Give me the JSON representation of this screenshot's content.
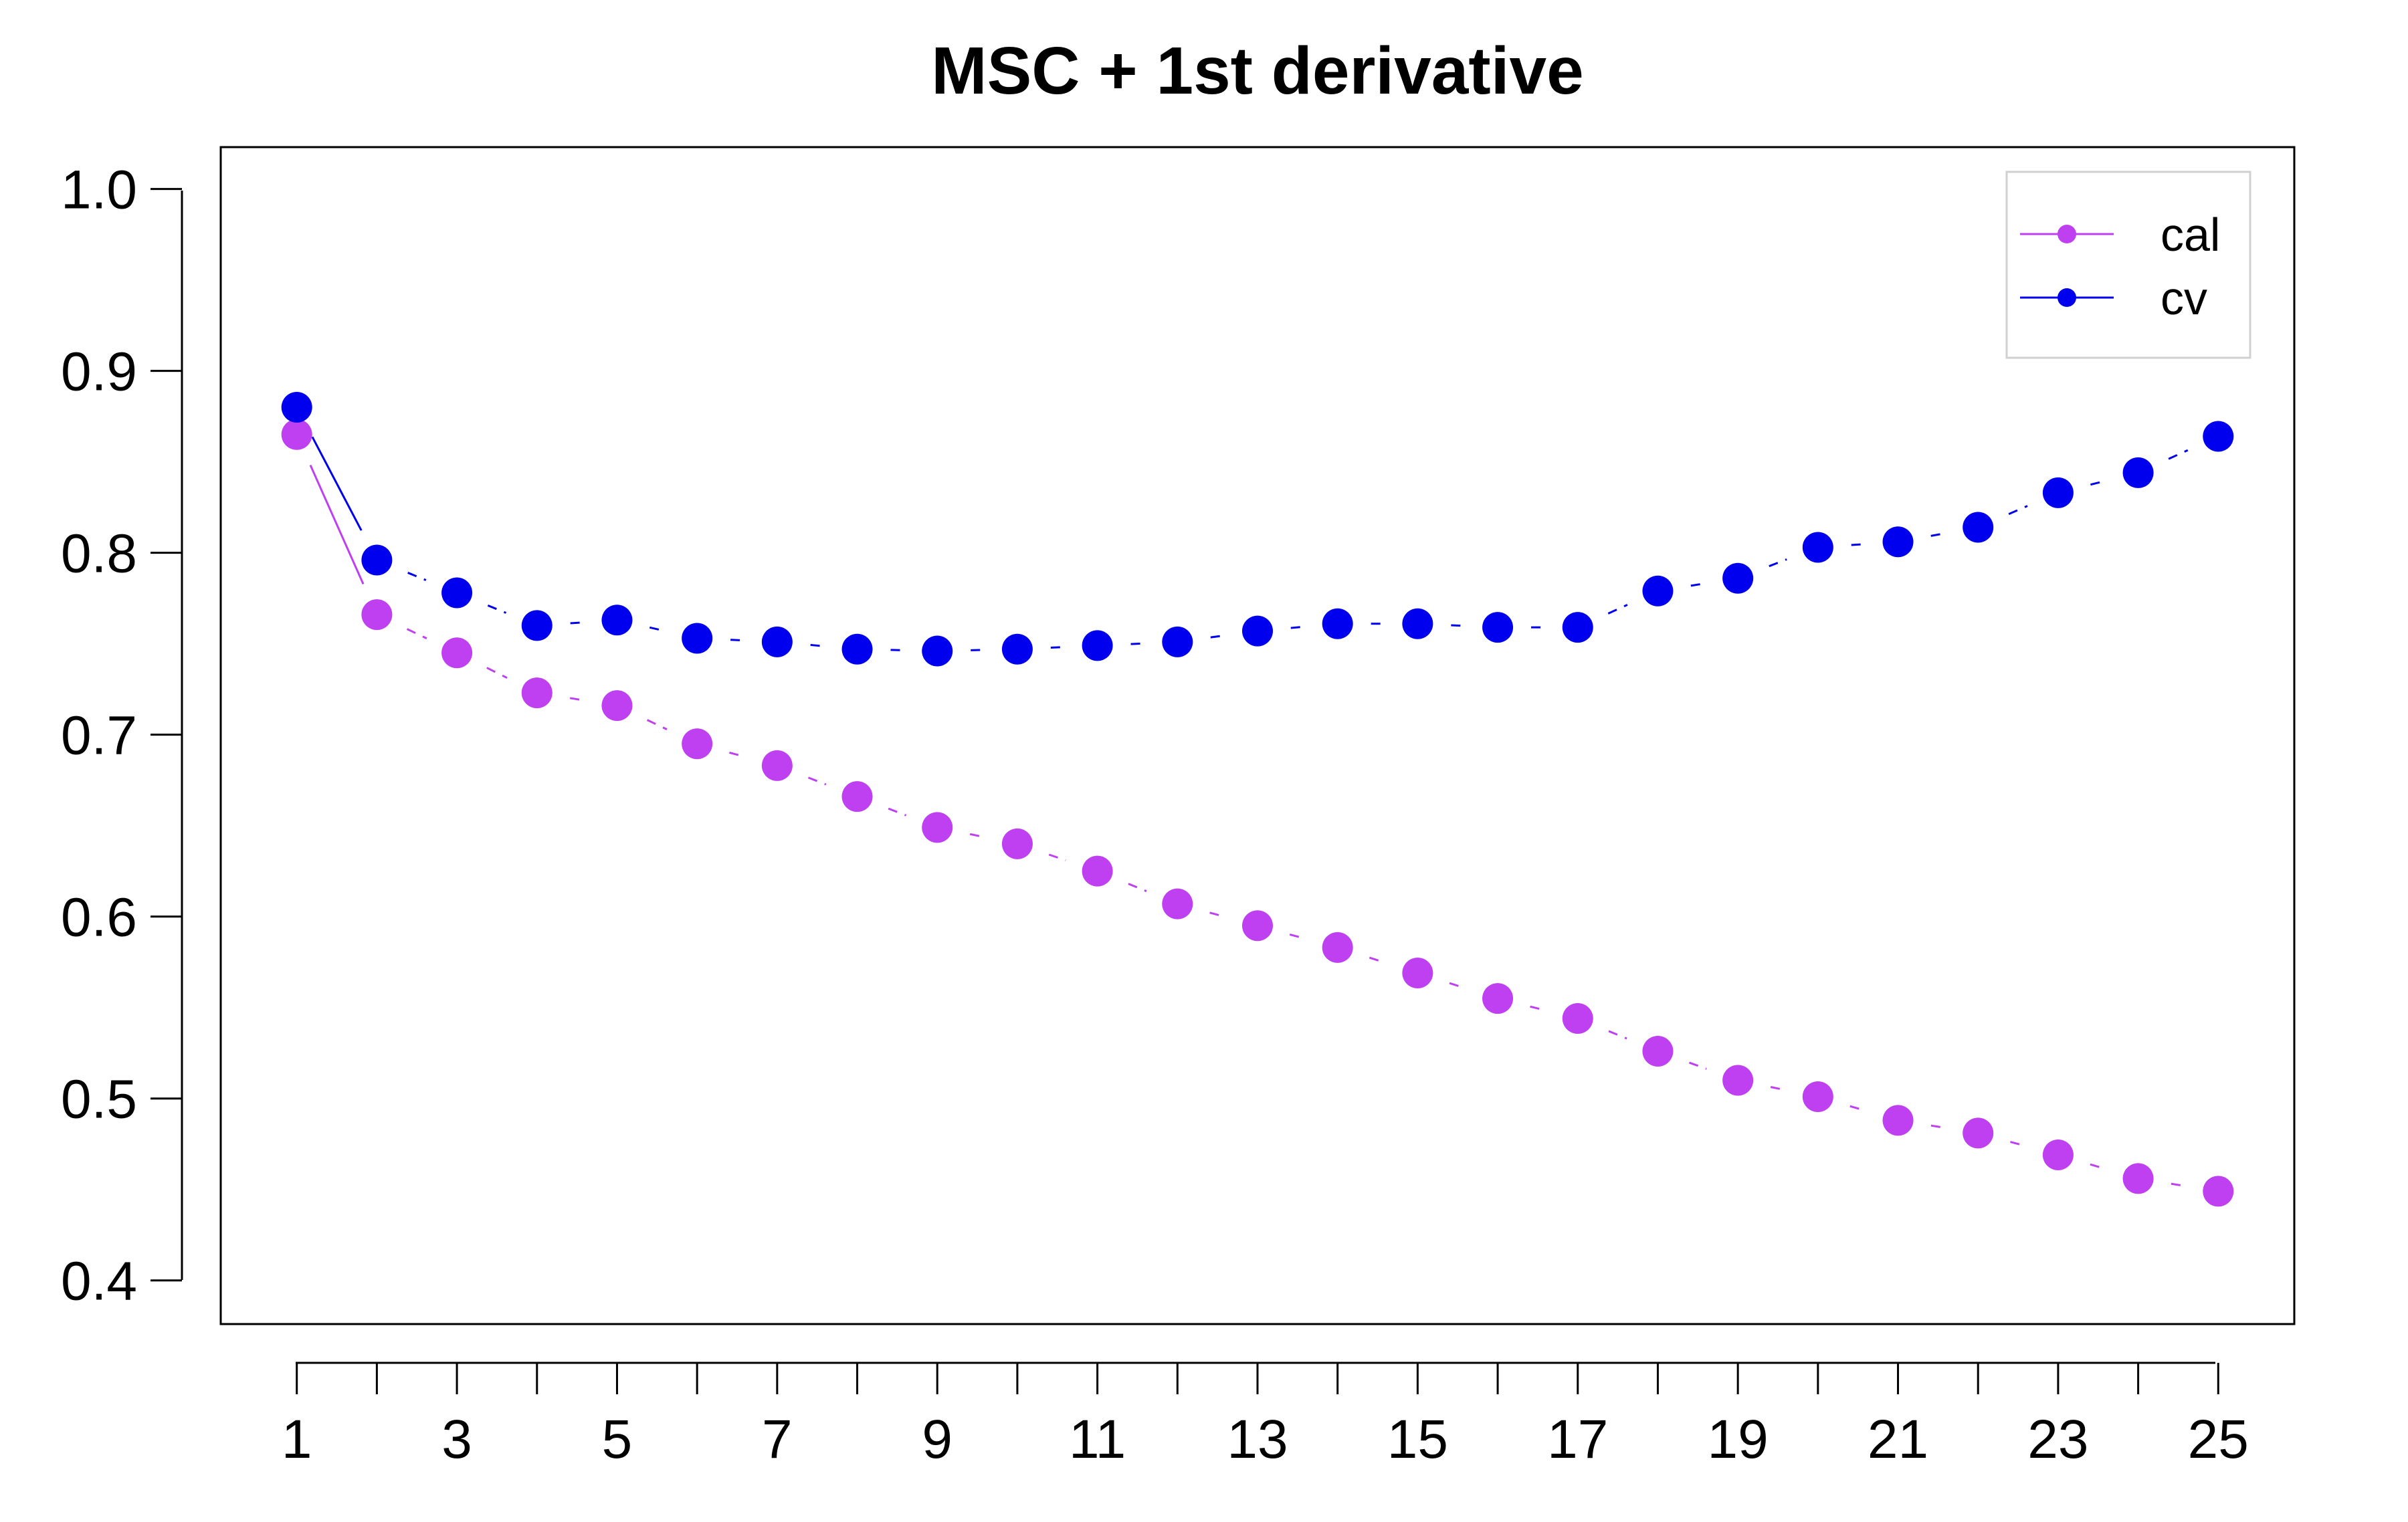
{
  "chart_data": {
    "type": "line",
    "title": "MSC + 1st derivative",
    "xlabel": "",
    "ylabel": "",
    "x": [
      1,
      2,
      3,
      4,
      5,
      6,
      7,
      8,
      9,
      10,
      11,
      12,
      13,
      14,
      15,
      16,
      17,
      18,
      19,
      20,
      21,
      22,
      23,
      24,
      25
    ],
    "x_tick_labels": [
      "1",
      "3",
      "5",
      "7",
      "9",
      "11",
      "13",
      "15",
      "17",
      "19",
      "21",
      "23",
      "25"
    ],
    "y_tick_labels": [
      "0.4",
      "0.5",
      "0.6",
      "0.7",
      "0.8",
      "0.9",
      "1.0"
    ],
    "xlim": [
      0.05,
      25.95
    ],
    "ylim": [
      0.376,
      1.023
    ],
    "grid": false,
    "legend_position": "top-right",
    "series": [
      {
        "name": "cal",
        "color": "#BF40F0",
        "values": [
          0.865,
          0.766,
          0.745,
          0.723,
          0.716,
          0.695,
          0.683,
          0.666,
          0.649,
          0.64,
          0.625,
          0.607,
          0.595,
          0.583,
          0.569,
          0.555,
          0.544,
          0.526,
          0.51,
          0.501,
          0.488,
          0.481,
          0.469,
          0.456,
          0.449
        ]
      },
      {
        "name": "cv",
        "color": "#0000EE",
        "values": [
          0.88,
          0.796,
          0.778,
          0.76,
          0.763,
          0.753,
          0.751,
          0.747,
          0.746,
          0.747,
          0.749,
          0.751,
          0.757,
          0.761,
          0.761,
          0.759,
          0.759,
          0.779,
          0.786,
          0.803,
          0.806,
          0.814,
          0.833,
          0.844,
          0.864
        ]
      }
    ]
  }
}
